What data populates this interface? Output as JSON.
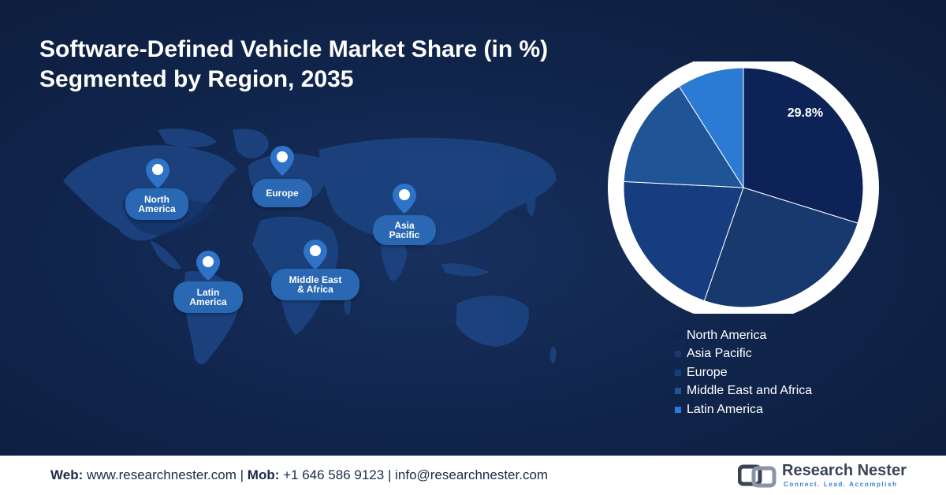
{
  "title": {
    "line1": "Software-Defined Vehicle Market Share (in %)",
    "line2": "Segmented by Region, 2035"
  },
  "map_labels": {
    "north_america": [
      "North",
      "America"
    ],
    "europe": "Europe",
    "asia_pacific": [
      "Asia",
      "Pacific"
    ],
    "middle_east_africa": [
      "Middle East",
      "& Africa"
    ],
    "latin_america": [
      "Latin",
      "America"
    ]
  },
  "chart_data": {
    "type": "pie",
    "categories": [
      "North America",
      "Asia Pacific",
      "Europe",
      "Middle East and Africa",
      "Latin America"
    ],
    "values": [
      29.8,
      25.5,
      20.5,
      15.2,
      9.0
    ],
    "colors": [
      "#0d2358",
      "#17396e",
      "#163d80",
      "#1f5497",
      "#2b7ad4"
    ],
    "data_labels": [
      "29.8%",
      "",
      "",
      "",
      ""
    ],
    "legend_position": "bottom-right"
  },
  "footer": {
    "web_label": "Web:",
    "web_value": "www.researchnester.com",
    "mob_label": "Mob:",
    "mob_value": "+1 646 586 9123",
    "email_value": "info@researchnester.com",
    "separator": "|"
  },
  "logo": {
    "name": "Research Nester",
    "tagline": "Connect. Lead. Accomplish"
  }
}
